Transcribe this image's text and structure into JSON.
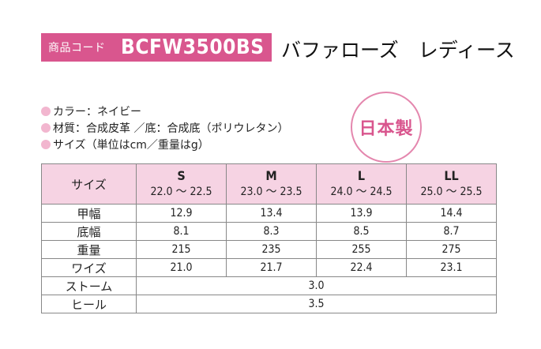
{
  "product": {
    "code_label": "商品コード",
    "code_value": "BCFW3500BS",
    "name": "バファローズ　レディース"
  },
  "specs": [
    "カラー：ネイビー",
    "材質：合成皮革 ／底：合成底（ポリウレタン）",
    "サイズ（単位はcm／重量はg）"
  ],
  "badge": {
    "text": "日本製"
  },
  "table": {
    "header_label": "サイズ",
    "sizes": [
      {
        "label": "S",
        "range": "22.0 ～ 22.5"
      },
      {
        "label": "M",
        "range": "23.0 ～ 23.5"
      },
      {
        "label": "L",
        "range": "24.0 ～ 24.5"
      },
      {
        "label": "LL",
        "range": "25.0 ～ 25.5"
      }
    ],
    "rows": [
      {
        "label": "甲幅",
        "values": [
          "12.9",
          "13.4",
          "13.9",
          "14.4"
        ]
      },
      {
        "label": "底幅",
        "values": [
          "8.1",
          "8.3",
          "8.5",
          "8.7"
        ]
      },
      {
        "label": "重量",
        "values": [
          "215",
          "235",
          "255",
          "275"
        ]
      },
      {
        "label": "ワイズ",
        "values": [
          "21.0",
          "21.7",
          "22.4",
          "23.1"
        ]
      }
    ],
    "merged_rows": [
      {
        "label": "ストーム",
        "value": "3.0"
      },
      {
        "label": "ヒール",
        "value": "3.5"
      }
    ]
  },
  "colors": {
    "accent": "#d9568e",
    "header_bg": "#f6d3e3",
    "bullet": "#f2b6cf"
  }
}
